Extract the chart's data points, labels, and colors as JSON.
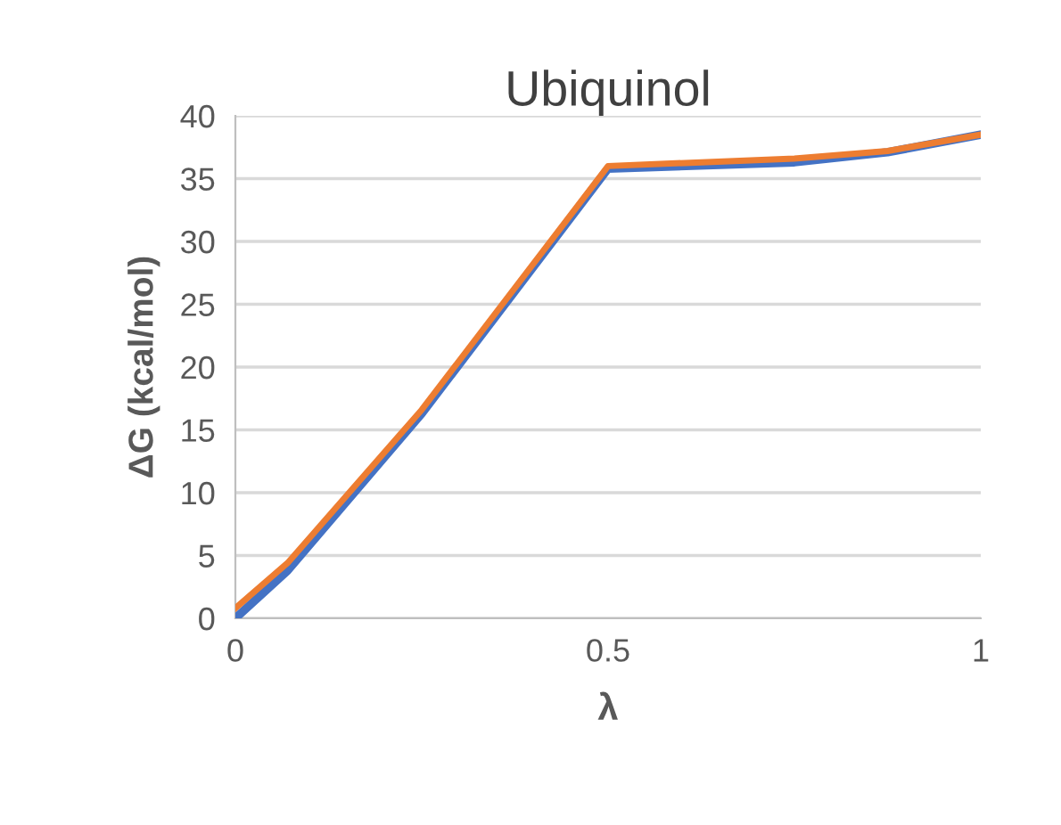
{
  "chart_data": {
    "type": "line",
    "title": "Ubiquinol",
    "xlabel": "λ",
    "ylabel": "ΔG (kcal/mol)",
    "xlim": [
      0,
      1
    ],
    "xticks": [
      0,
      0.5,
      1
    ],
    "ylim": [
      0,
      40
    ],
    "yticks": [
      0,
      5,
      10,
      15,
      20,
      25,
      30,
      35,
      40
    ],
    "grid": "y",
    "legend": false,
    "marker": "none",
    "line_style": "solid",
    "series": [
      {
        "color": "#4472c4",
        "x": [
          0,
          0.07,
          0.25,
          0.5,
          0.75,
          0.875,
          1
        ],
        "values": [
          0,
          3.8,
          16.3,
          35.8,
          36.3,
          37.1,
          38.5
        ]
      },
      {
        "color": "#ed7d31",
        "x": [
          0,
          0.07,
          0.25,
          0.5,
          0.75,
          0.875,
          1
        ],
        "values": [
          0.8,
          4.4,
          16.6,
          36,
          36.6,
          37.2,
          38.5
        ]
      }
    ]
  }
}
